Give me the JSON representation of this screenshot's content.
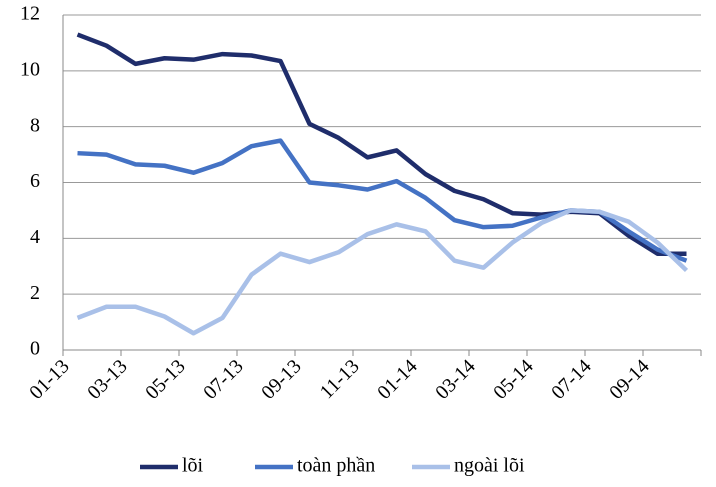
{
  "chart_data": {
    "type": "line",
    "categories": [
      "01-13",
      null,
      "03-13",
      null,
      "05-13",
      null,
      "07-13",
      null,
      "09-13",
      null,
      "11-13",
      null,
      "01-14",
      null,
      "03-14",
      null,
      "05-14",
      null,
      "07-14",
      null,
      "09-14",
      null
    ],
    "series": [
      {
        "name": "lõi",
        "color": "#1f2d6b",
        "values": [
          11.3,
          10.9,
          10.25,
          10.45,
          10.4,
          10.6,
          10.55,
          10.35,
          8.1,
          7.6,
          6.9,
          7.15,
          6.3,
          5.7,
          5.4,
          4.9,
          4.85,
          4.95,
          4.9,
          4.1,
          3.45,
          3.45
        ]
      },
      {
        "name": "toàn phần",
        "color": "#4472c4",
        "values": [
          7.05,
          7.0,
          6.65,
          6.6,
          6.35,
          6.7,
          7.3,
          7.5,
          6.0,
          5.9,
          5.75,
          6.05,
          5.45,
          4.65,
          4.4,
          4.45,
          4.75,
          5.0,
          4.95,
          4.25,
          3.6,
          3.2
        ]
      },
      {
        "name": "ngoài lõi",
        "color": "#a9c0e8",
        "values": [
          1.15,
          1.55,
          1.55,
          1.2,
          0.6,
          1.15,
          2.7,
          3.45,
          3.15,
          3.5,
          4.15,
          4.5,
          4.25,
          3.2,
          2.95,
          3.85,
          4.55,
          5.0,
          4.95,
          4.6,
          3.85,
          2.85
        ]
      }
    ],
    "ylim": [
      0,
      12
    ],
    "yticks": [
      0,
      2,
      4,
      6,
      8,
      10,
      12
    ],
    "grid": true,
    "legend": "bottom"
  }
}
